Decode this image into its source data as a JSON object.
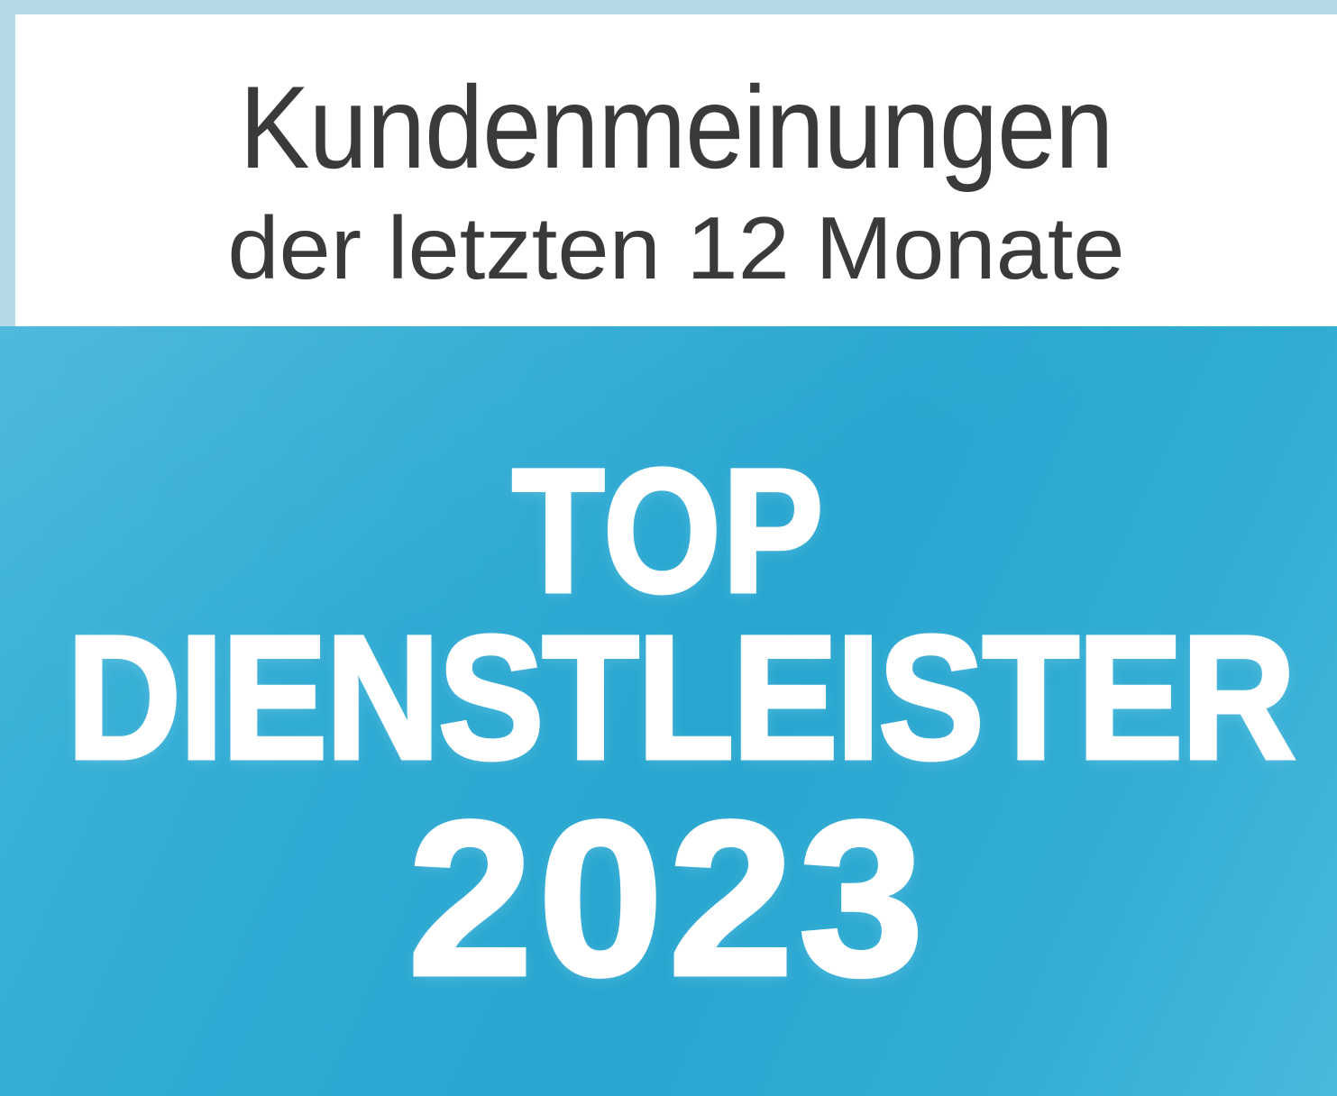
{
  "header": {
    "line1": "Kundenmeinungen",
    "line2": "der letzten 12 Monate"
  },
  "award": {
    "line1": "TOP",
    "line2": "DIENSTLEISTER",
    "year": "2023"
  },
  "colors": {
    "frame_light_blue": "#b4dbe5",
    "header_bg": "#ffffff",
    "header_text": "#3a3a3c",
    "award_bg_light": "#3fb4da",
    "award_bg_dark": "#28a6d0",
    "award_text": "#ffffff"
  }
}
